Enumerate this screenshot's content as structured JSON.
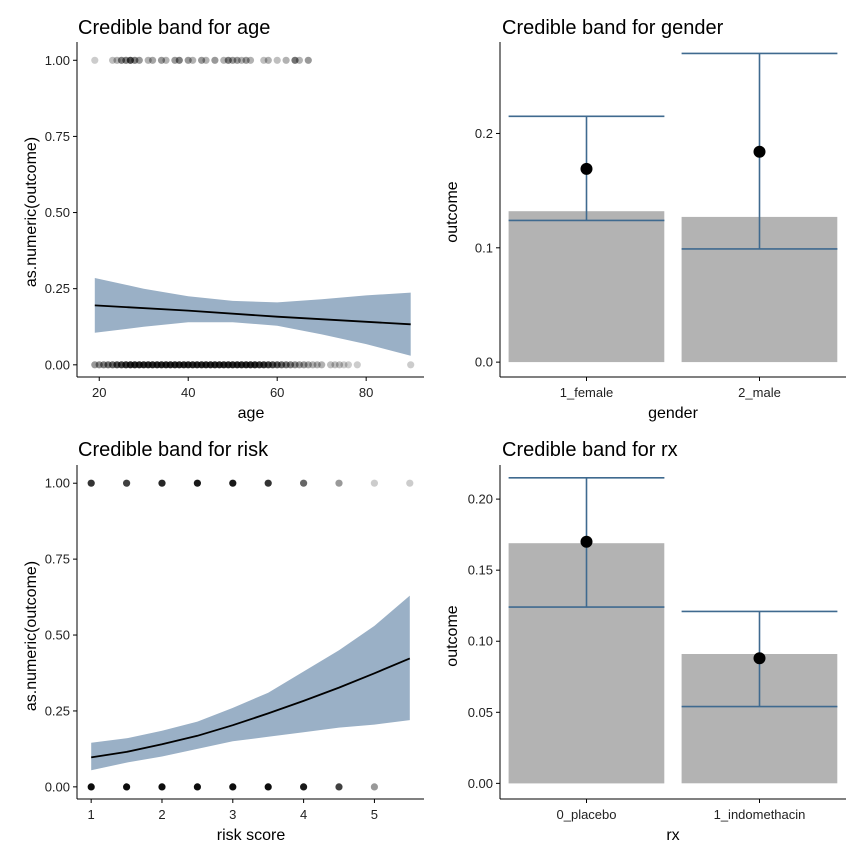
{
  "chart_data": [
    {
      "id": "age",
      "type": "scatter+ribbon",
      "title": "Credible band for age",
      "xlabel": "age",
      "ylabel": "as.numeric(outcome)",
      "xlim": [
        15,
        93
      ],
      "ylim": [
        -0.04,
        1.06
      ],
      "xticks": [
        20,
        40,
        60,
        80
      ],
      "yticks": [
        0.0,
        0.25,
        0.5,
        0.75,
        1.0
      ],
      "ytick_labels": [
        "0.00",
        "0.25",
        "0.50",
        "0.75",
        "1.00"
      ],
      "points": [
        {
          "x": 19,
          "y": 1,
          "alpha": 0.2
        },
        {
          "x": 23,
          "y": 1,
          "alpha": 0.25
        },
        {
          "x": 24,
          "y": 1,
          "alpha": 0.3
        },
        {
          "x": 25,
          "y": 1,
          "alpha": 0.5
        },
        {
          "x": 26,
          "y": 1,
          "alpha": 0.5
        },
        {
          "x": 27,
          "y": 1,
          "alpha": 0.7
        },
        {
          "x": 28,
          "y": 1,
          "alpha": 0.5
        },
        {
          "x": 29,
          "y": 1,
          "alpha": 0.4
        },
        {
          "x": 31,
          "y": 1,
          "alpha": 0.3
        },
        {
          "x": 32,
          "y": 1,
          "alpha": 0.35
        },
        {
          "x": 34,
          "y": 1,
          "alpha": 0.4
        },
        {
          "x": 35,
          "y": 1,
          "alpha": 0.3
        },
        {
          "x": 37,
          "y": 1,
          "alpha": 0.4
        },
        {
          "x": 38,
          "y": 1,
          "alpha": 0.5
        },
        {
          "x": 40,
          "y": 1,
          "alpha": 0.4
        },
        {
          "x": 41,
          "y": 1,
          "alpha": 0.3
        },
        {
          "x": 43,
          "y": 1,
          "alpha": 0.4
        },
        {
          "x": 44,
          "y": 1,
          "alpha": 0.3
        },
        {
          "x": 46,
          "y": 1,
          "alpha": 0.4
        },
        {
          "x": 48,
          "y": 1,
          "alpha": 0.3
        },
        {
          "x": 49,
          "y": 1,
          "alpha": 0.5
        },
        {
          "x": 50,
          "y": 1,
          "alpha": 0.4
        },
        {
          "x": 51,
          "y": 1,
          "alpha": 0.4
        },
        {
          "x": 52,
          "y": 1,
          "alpha": 0.3
        },
        {
          "x": 53,
          "y": 1,
          "alpha": 0.4
        },
        {
          "x": 54,
          "y": 1,
          "alpha": 0.3
        },
        {
          "x": 57,
          "y": 1,
          "alpha": 0.25
        },
        {
          "x": 58,
          "y": 1,
          "alpha": 0.3
        },
        {
          "x": 60,
          "y": 1,
          "alpha": 0.25
        },
        {
          "x": 62,
          "y": 1,
          "alpha": 0.3
        },
        {
          "x": 64,
          "y": 1,
          "alpha": 0.55
        },
        {
          "x": 65,
          "y": 1,
          "alpha": 0.3
        },
        {
          "x": 67,
          "y": 1,
          "alpha": 0.4
        },
        {
          "x": 19,
          "y": 0,
          "alpha": 0.4
        },
        {
          "x": 20,
          "y": 0,
          "alpha": 0.45
        },
        {
          "x": 21,
          "y": 0,
          "alpha": 0.5
        },
        {
          "x": 22,
          "y": 0,
          "alpha": 0.55
        },
        {
          "x": 23,
          "y": 0,
          "alpha": 0.6
        },
        {
          "x": 24,
          "y": 0,
          "alpha": 0.7
        },
        {
          "x": 25,
          "y": 0,
          "alpha": 0.75
        },
        {
          "x": 26,
          "y": 0,
          "alpha": 0.8
        },
        {
          "x": 27,
          "y": 0,
          "alpha": 0.85
        },
        {
          "x": 28,
          "y": 0,
          "alpha": 0.85
        },
        {
          "x": 29,
          "y": 0,
          "alpha": 0.85
        },
        {
          "x": 30,
          "y": 0,
          "alpha": 0.85
        },
        {
          "x": 31,
          "y": 0,
          "alpha": 0.85
        },
        {
          "x": 32,
          "y": 0,
          "alpha": 0.85
        },
        {
          "x": 33,
          "y": 0,
          "alpha": 0.85
        },
        {
          "x": 34,
          "y": 0,
          "alpha": 0.85
        },
        {
          "x": 35,
          "y": 0,
          "alpha": 0.85
        },
        {
          "x": 36,
          "y": 0,
          "alpha": 0.85
        },
        {
          "x": 37,
          "y": 0,
          "alpha": 0.85
        },
        {
          "x": 38,
          "y": 0,
          "alpha": 0.85
        },
        {
          "x": 39,
          "y": 0,
          "alpha": 0.85
        },
        {
          "x": 40,
          "y": 0,
          "alpha": 0.85
        },
        {
          "x": 41,
          "y": 0,
          "alpha": 0.85
        },
        {
          "x": 42,
          "y": 0,
          "alpha": 0.85
        },
        {
          "x": 43,
          "y": 0,
          "alpha": 0.85
        },
        {
          "x": 44,
          "y": 0,
          "alpha": 0.85
        },
        {
          "x": 45,
          "y": 0,
          "alpha": 0.85
        },
        {
          "x": 46,
          "y": 0,
          "alpha": 0.85
        },
        {
          "x": 47,
          "y": 0,
          "alpha": 0.85
        },
        {
          "x": 48,
          "y": 0,
          "alpha": 0.85
        },
        {
          "x": 49,
          "y": 0,
          "alpha": 0.85
        },
        {
          "x": 50,
          "y": 0,
          "alpha": 0.85
        },
        {
          "x": 51,
          "y": 0,
          "alpha": 0.85
        },
        {
          "x": 52,
          "y": 0,
          "alpha": 0.85
        },
        {
          "x": 53,
          "y": 0,
          "alpha": 0.85
        },
        {
          "x": 54,
          "y": 0,
          "alpha": 0.85
        },
        {
          "x": 55,
          "y": 0,
          "alpha": 0.85
        },
        {
          "x": 56,
          "y": 0,
          "alpha": 0.8
        },
        {
          "x": 57,
          "y": 0,
          "alpha": 0.8
        },
        {
          "x": 58,
          "y": 0,
          "alpha": 0.75
        },
        {
          "x": 59,
          "y": 0,
          "alpha": 0.7
        },
        {
          "x": 60,
          "y": 0,
          "alpha": 0.65
        },
        {
          "x": 61,
          "y": 0,
          "alpha": 0.6
        },
        {
          "x": 62,
          "y": 0,
          "alpha": 0.55
        },
        {
          "x": 63,
          "y": 0,
          "alpha": 0.5
        },
        {
          "x": 64,
          "y": 0,
          "alpha": 0.45
        },
        {
          "x": 65,
          "y": 0,
          "alpha": 0.4
        },
        {
          "x": 66,
          "y": 0,
          "alpha": 0.4
        },
        {
          "x": 67,
          "y": 0,
          "alpha": 0.35
        },
        {
          "x": 68,
          "y": 0,
          "alpha": 0.3
        },
        {
          "x": 69,
          "y": 0,
          "alpha": 0.3
        },
        {
          "x": 70,
          "y": 0,
          "alpha": 0.3
        },
        {
          "x": 72,
          "y": 0,
          "alpha": 0.25
        },
        {
          "x": 73,
          "y": 0,
          "alpha": 0.25
        },
        {
          "x": 74,
          "y": 0,
          "alpha": 0.25
        },
        {
          "x": 75,
          "y": 0,
          "alpha": 0.2
        },
        {
          "x": 76,
          "y": 0,
          "alpha": 0.2
        },
        {
          "x": 78,
          "y": 0,
          "alpha": 0.2
        },
        {
          "x": 90,
          "y": 0,
          "alpha": 0.2
        }
      ],
      "ribbon": [
        {
          "x": 19,
          "lo": 0.105,
          "hi": 0.285
        },
        {
          "x": 30,
          "lo": 0.125,
          "hi": 0.25
        },
        {
          "x": 40,
          "lo": 0.14,
          "hi": 0.225
        },
        {
          "x": 50,
          "lo": 0.14,
          "hi": 0.21
        },
        {
          "x": 60,
          "lo": 0.128,
          "hi": 0.205
        },
        {
          "x": 70,
          "lo": 0.1,
          "hi": 0.215
        },
        {
          "x": 80,
          "lo": 0.068,
          "hi": 0.228
        },
        {
          "x": 90,
          "lo": 0.03,
          "hi": 0.237
        }
      ],
      "line": [
        {
          "x": 19,
          "y": 0.195
        },
        {
          "x": 40,
          "y": 0.178
        },
        {
          "x": 60,
          "y": 0.158
        },
        {
          "x": 90,
          "y": 0.133
        }
      ]
    },
    {
      "id": "gender",
      "type": "bar+errorbar",
      "title": "Credible band for gender",
      "xlabel": "gender",
      "ylabel": "outcome",
      "categories": [
        "1_female",
        "2_male"
      ],
      "ylim": [
        -0.013,
        0.28
      ],
      "yticks": [
        0.0,
        0.1,
        0.2
      ],
      "ytick_labels": [
        "0.0",
        "0.1",
        "0.2"
      ],
      "bars": [
        0.132,
        0.127
      ],
      "estimates": [
        0.169,
        0.184
      ],
      "lower": [
        0.124,
        0.099
      ],
      "upper": [
        0.215,
        0.27
      ]
    },
    {
      "id": "risk",
      "type": "scatter+ribbon",
      "title": "Credible band for risk",
      "xlabel": "risk score",
      "ylabel": "as.numeric(outcome)",
      "xlim": [
        0.8,
        5.7
      ],
      "ylim": [
        -0.04,
        1.06
      ],
      "xticks": [
        1,
        2,
        3,
        4,
        5
      ],
      "yticks": [
        0.0,
        0.25,
        0.5,
        0.75,
        1.0
      ],
      "ytick_labels": [
        "0.00",
        "0.25",
        "0.50",
        "0.75",
        "1.00"
      ],
      "points": [
        {
          "x": 1,
          "y": 1,
          "alpha": 0.8
        },
        {
          "x": 1.5,
          "y": 1,
          "alpha": 0.75
        },
        {
          "x": 2,
          "y": 1,
          "alpha": 0.85
        },
        {
          "x": 2.5,
          "y": 1,
          "alpha": 0.9
        },
        {
          "x": 3,
          "y": 1,
          "alpha": 0.9
        },
        {
          "x": 3.5,
          "y": 1,
          "alpha": 0.8
        },
        {
          "x": 4,
          "y": 1,
          "alpha": 0.6
        },
        {
          "x": 4.5,
          "y": 1,
          "alpha": 0.4
        },
        {
          "x": 5,
          "y": 1,
          "alpha": 0.2
        },
        {
          "x": 5.5,
          "y": 1,
          "alpha": 0.2
        },
        {
          "x": 1,
          "y": 0,
          "alpha": 0.95
        },
        {
          "x": 1.5,
          "y": 0,
          "alpha": 0.95
        },
        {
          "x": 2,
          "y": 0,
          "alpha": 0.95
        },
        {
          "x": 2.5,
          "y": 0,
          "alpha": 0.95
        },
        {
          "x": 3,
          "y": 0,
          "alpha": 0.95
        },
        {
          "x": 3.5,
          "y": 0,
          "alpha": 0.95
        },
        {
          "x": 4,
          "y": 0,
          "alpha": 0.9
        },
        {
          "x": 4.5,
          "y": 0,
          "alpha": 0.75
        },
        {
          "x": 5,
          "y": 0,
          "alpha": 0.4
        }
      ],
      "ribbon": [
        {
          "x": 1,
          "lo": 0.055,
          "hi": 0.145
        },
        {
          "x": 1.5,
          "lo": 0.08,
          "hi": 0.16
        },
        {
          "x": 2,
          "lo": 0.1,
          "hi": 0.185
        },
        {
          "x": 2.5,
          "lo": 0.125,
          "hi": 0.215
        },
        {
          "x": 3,
          "lo": 0.15,
          "hi": 0.26
        },
        {
          "x": 3.5,
          "lo": 0.165,
          "hi": 0.31
        },
        {
          "x": 4,
          "lo": 0.18,
          "hi": 0.38
        },
        {
          "x": 4.5,
          "lo": 0.195,
          "hi": 0.45
        },
        {
          "x": 5,
          "lo": 0.205,
          "hi": 0.53
        },
        {
          "x": 5.5,
          "lo": 0.22,
          "hi": 0.63
        }
      ],
      "line": [
        {
          "x": 1,
          "y": 0.097
        },
        {
          "x": 1.5,
          "y": 0.115
        },
        {
          "x": 2,
          "y": 0.14
        },
        {
          "x": 2.5,
          "y": 0.168
        },
        {
          "x": 3,
          "y": 0.203
        },
        {
          "x": 3.5,
          "y": 0.242
        },
        {
          "x": 4,
          "y": 0.283
        },
        {
          "x": 4.5,
          "y": 0.327
        },
        {
          "x": 5,
          "y": 0.374
        },
        {
          "x": 5.5,
          "y": 0.423
        }
      ]
    },
    {
      "id": "rx",
      "type": "bar+errorbar",
      "title": "Credible band for rx",
      "xlabel": "rx",
      "ylabel": "outcome",
      "categories": [
        "0_placebo",
        "1_indomethacin"
      ],
      "ylim": [
        -0.011,
        0.224
      ],
      "yticks": [
        0.0,
        0.05,
        0.1,
        0.15,
        0.2
      ],
      "ytick_labels": [
        "0.00",
        "0.05",
        "0.10",
        "0.15",
        "0.20"
      ],
      "bars": [
        0.169,
        0.091
      ],
      "estimates": [
        0.17,
        0.088
      ],
      "lower": [
        0.124,
        0.054
      ],
      "upper": [
        0.215,
        0.121
      ]
    }
  ],
  "colors": {
    "ribbon": "#9ab0c6",
    "errorbar": "#3f6a8f",
    "bar": "#b3b3b3",
    "point": "#000000",
    "line": "#000000"
  }
}
